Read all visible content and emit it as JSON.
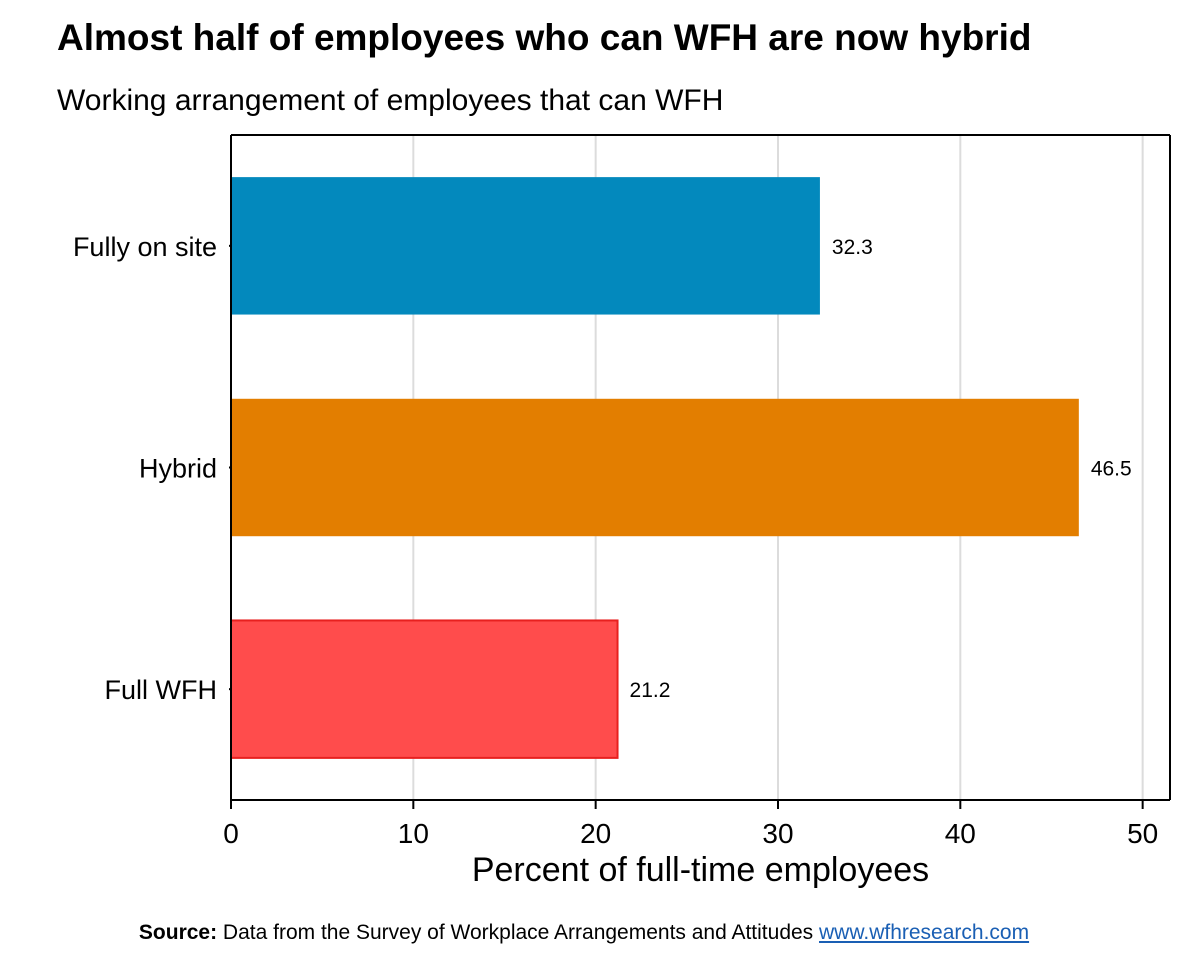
{
  "chart_data": {
    "type": "bar",
    "orientation": "horizontal",
    "title": "Almost half of employees who can WFH are now hybrid",
    "subtitle": "Working arrangement of employees that can WFH",
    "categories": [
      "Fully on site",
      "Hybrid",
      "Full WFH"
    ],
    "values": [
      32.3,
      46.5,
      21.2
    ],
    "value_labels": [
      "32.3",
      "46.5",
      "21.2"
    ],
    "colors": [
      "#0389bd",
      "#e37e00",
      "#ff4c4c"
    ],
    "xlabel": "Percent of full-time employees",
    "ylabel": "",
    "xlim": [
      0,
      51.5
    ],
    "xticks": [
      0,
      10,
      20,
      30,
      40,
      50
    ],
    "xtick_labels": [
      "0",
      "10",
      "20",
      "30",
      "40",
      "50"
    ],
    "grid": "vertical",
    "legend": "none"
  },
  "source": {
    "label": "Source:",
    "text": " Data from the Survey of Workplace Arrangements and Attitudes ",
    "link_text": "www.wfhresearch.com"
  }
}
